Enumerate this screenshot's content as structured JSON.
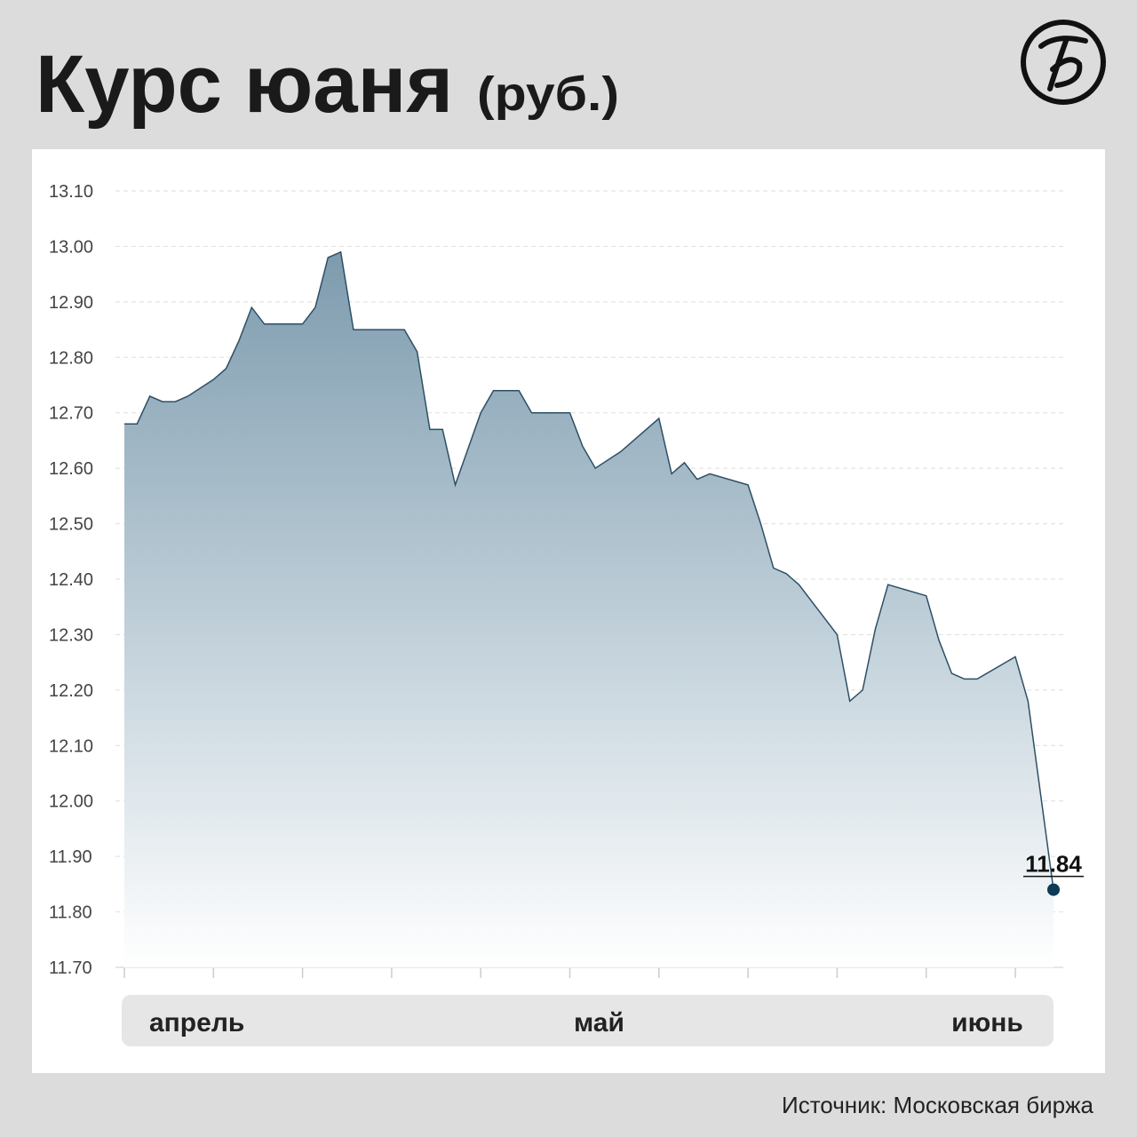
{
  "chart_data": {
    "type": "area",
    "title": "Курс юаня",
    "subtitle": "(руб.)",
    "source": "Источник: Московская биржа",
    "color": "#2d4f66",
    "x": [
      0,
      1,
      2,
      3,
      4,
      5,
      7,
      8,
      9,
      10,
      11,
      14,
      15,
      16,
      17,
      18,
      21,
      22,
      23,
      24,
      25,
      26,
      28,
      29,
      31,
      32,
      35,
      36,
      37,
      39,
      42,
      43,
      44,
      45,
      46,
      49,
      50,
      51,
      52,
      53,
      56,
      57,
      58,
      59,
      60,
      63,
      64,
      65,
      66,
      67,
      70,
      71,
      73
    ],
    "values": [
      12.68,
      12.68,
      12.73,
      12.72,
      12.72,
      12.73,
      12.76,
      12.78,
      12.83,
      12.89,
      12.86,
      12.86,
      12.89,
      12.98,
      12.99,
      12.85,
      12.85,
      12.85,
      12.81,
      12.67,
      12.67,
      12.57,
      12.7,
      12.74,
      12.74,
      12.7,
      12.7,
      12.64,
      12.6,
      12.63,
      12.69,
      12.59,
      12.61,
      12.58,
      12.59,
      12.57,
      12.5,
      12.42,
      12.41,
      12.39,
      12.3,
      12.18,
      12.2,
      12.31,
      12.39,
      12.37,
      12.29,
      12.23,
      12.22,
      12.22,
      12.26,
      12.18,
      11.84
    ],
    "xlim": [
      0,
      73
    ],
    "xticks": [
      0,
      7,
      14,
      21,
      28,
      35,
      42,
      49,
      56,
      63,
      70
    ],
    "months": [
      {
        "value": 5.7,
        "label": "апрель"
      },
      {
        "value": 37.3,
        "label": "май"
      },
      {
        "value": 67.8,
        "label": "июнь"
      }
    ],
    "ylim": [
      11.7,
      13.1
    ],
    "yticks": [
      {
        "value": 13.1,
        "label": "13.10"
      },
      {
        "value": 13.0,
        "label": "13.00"
      },
      {
        "value": 12.9,
        "label": "12.90"
      },
      {
        "value": 12.8,
        "label": "12.80"
      },
      {
        "value": 12.7,
        "label": "12.70"
      },
      {
        "value": 12.6,
        "label": "12.60"
      },
      {
        "value": 12.5,
        "label": "12.50"
      },
      {
        "value": 12.4,
        "label": "12.40"
      },
      {
        "value": 12.3,
        "label": "12.30"
      },
      {
        "value": 12.2,
        "label": "12.20"
      },
      {
        "value": 12.1,
        "label": "12.10"
      },
      {
        "value": 12.0,
        "label": "12.00"
      },
      {
        "value": 11.9,
        "label": "11.90"
      },
      {
        "value": 11.8,
        "label": "11.80"
      },
      {
        "value": 11.7,
        "label": "11.70"
      }
    ],
    "grid": true
  }
}
